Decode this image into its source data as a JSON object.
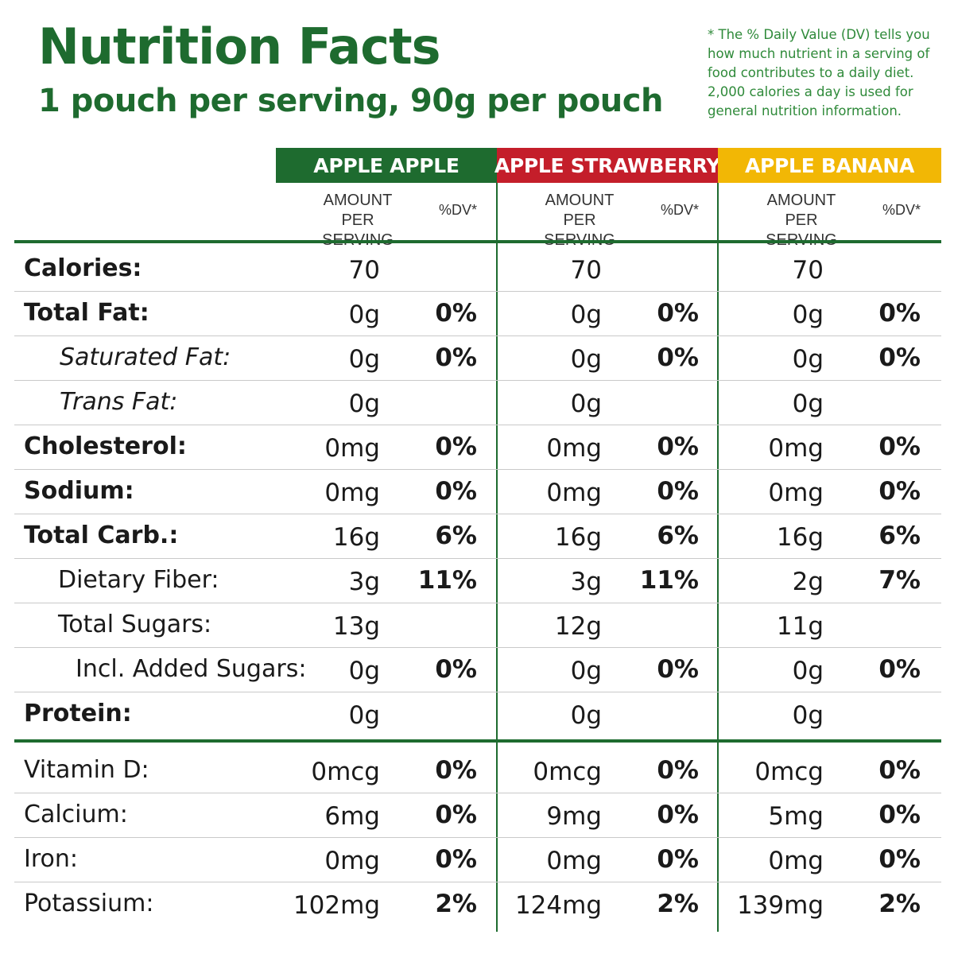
{
  "header": {
    "title": "Nutrition Facts",
    "subtitle": "1 pouch per serving, 90g per pouch",
    "dv_note": "* The % Daily Value (DV) tells you how much nutrient in a serving of food contributes to a daily diet. 2,000 calories a day is used for general nutrition information."
  },
  "colors": {
    "brand_green": "#1e6b2f",
    "apple_apple": "#1e6b2f",
    "apple_strawberry": "#c41e2a",
    "apple_banana": "#f2b705"
  },
  "columns": [
    {
      "name": "APPLE APPLE",
      "amount_header": "AMOUNT PER SERVING",
      "dv_header": "%DV*"
    },
    {
      "name": "APPLE STRAWBERRY",
      "amount_header": "AMOUNT PER SERVING",
      "dv_header": "%DV*"
    },
    {
      "name": "APPLE BANANA",
      "amount_header": "AMOUNT PER SERVING",
      "dv_header": "%DV*"
    }
  ],
  "rows": [
    {
      "label": "Calories:",
      "style": "bold",
      "values": [
        [
          "70",
          ""
        ],
        [
          "70",
          ""
        ],
        [
          "70",
          ""
        ]
      ]
    },
    {
      "label": "Total Fat:",
      "style": "bold",
      "values": [
        [
          "0g",
          "0%"
        ],
        [
          "0g",
          "0%"
        ],
        [
          "0g",
          "0%"
        ]
      ]
    },
    {
      "label": "Saturated Fat:",
      "style": "italic",
      "values": [
        [
          "0g",
          "0%"
        ],
        [
          "0g",
          "0%"
        ],
        [
          "0g",
          "0%"
        ]
      ]
    },
    {
      "label": "Trans Fat:",
      "style": "italic",
      "values": [
        [
          "0g",
          ""
        ],
        [
          "0g",
          ""
        ],
        [
          "0g",
          ""
        ]
      ]
    },
    {
      "label": "Cholesterol:",
      "style": "bold",
      "values": [
        [
          "0mg",
          "0%"
        ],
        [
          "0mg",
          "0%"
        ],
        [
          "0mg",
          "0%"
        ]
      ]
    },
    {
      "label": "Sodium:",
      "style": "bold",
      "values": [
        [
          "0mg",
          "0%"
        ],
        [
          "0mg",
          "0%"
        ],
        [
          "0mg",
          "0%"
        ]
      ]
    },
    {
      "label": "Total Carb.:",
      "style": "bold",
      "values": [
        [
          "16g",
          "6%"
        ],
        [
          "16g",
          "6%"
        ],
        [
          "16g",
          "6%"
        ]
      ]
    },
    {
      "label": "Dietary Fiber:",
      "style": "indent",
      "values": [
        [
          "3g",
          "11%"
        ],
        [
          "3g",
          "11%"
        ],
        [
          "2g",
          "7%"
        ]
      ]
    },
    {
      "label": "Total Sugars:",
      "style": "indent",
      "values": [
        [
          "13g",
          ""
        ],
        [
          "12g",
          ""
        ],
        [
          "11g",
          ""
        ]
      ]
    },
    {
      "label": "Incl. Added Sugars:",
      "style": "indent2",
      "values": [
        [
          "0g",
          "0%"
        ],
        [
          "0g",
          "0%"
        ],
        [
          "0g",
          "0%"
        ]
      ]
    },
    {
      "label": "Protein:",
      "style": "bold",
      "values": [
        [
          "0g",
          ""
        ],
        [
          "0g",
          ""
        ],
        [
          "0g",
          ""
        ]
      ]
    }
  ],
  "minerals": [
    {
      "label": "Vitamin D:",
      "values": [
        [
          "0mcg",
          "0%"
        ],
        [
          "0mcg",
          "0%"
        ],
        [
          "0mcg",
          "0%"
        ]
      ]
    },
    {
      "label": "Calcium:",
      "values": [
        [
          "6mg",
          "0%"
        ],
        [
          "9mg",
          "0%"
        ],
        [
          "5mg",
          "0%"
        ]
      ]
    },
    {
      "label": "Iron:",
      "values": [
        [
          "0mg",
          "0%"
        ],
        [
          "0mg",
          "0%"
        ],
        [
          "0mg",
          "0%"
        ]
      ]
    },
    {
      "label": "Potassium:",
      "values": [
        [
          "102mg",
          "2%"
        ],
        [
          "124mg",
          "2%"
        ],
        [
          "139mg",
          "2%"
        ]
      ]
    }
  ]
}
